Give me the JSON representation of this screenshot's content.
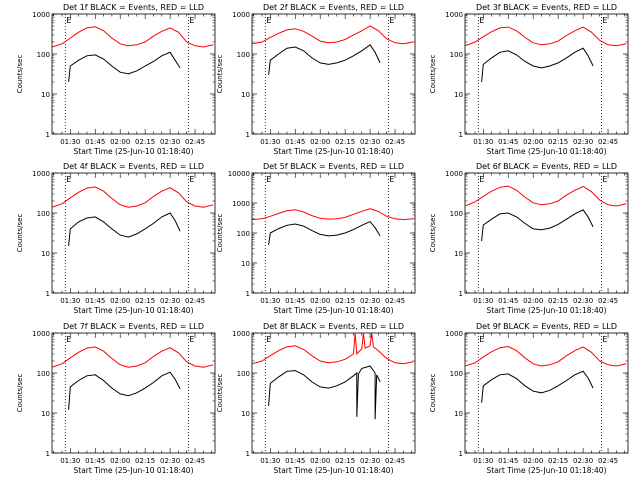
{
  "colors": {
    "background": "#ffffff",
    "axes": "#000000",
    "events": "#000000",
    "lld": "#ff0000"
  },
  "chart_data": [
    {
      "type": "line",
      "title": "Det 1f BLACK = Events, RED = LLD",
      "xlabel": "Start Time (25-Jun-10 01:18:40)",
      "ylabel": "Counts/sec",
      "y_scale": "log",
      "ylim": [
        1,
        1000
      ],
      "yticks": [
        "1",
        "10",
        "100",
        "1000"
      ],
      "xticks": [
        "01:30",
        "01:45",
        "02:00",
        "02:15",
        "02:30",
        "02:45"
      ],
      "markers": [
        "E",
        "E"
      ],
      "series": [
        {
          "name": "LLD",
          "x": [
            "01:19",
            "01:25",
            "01:30",
            "01:35",
            "01:40",
            "01:45",
            "01:50",
            "01:55",
            "02:00",
            "02:05",
            "02:10",
            "02:15",
            "02:20",
            "02:25",
            "02:30",
            "02:35",
            "02:40",
            "02:45",
            "02:50",
            "02:56"
          ],
          "values": [
            150,
            180,
            250,
            350,
            450,
            480,
            380,
            250,
            180,
            160,
            170,
            200,
            280,
            370,
            450,
            350,
            200,
            160,
            150,
            170
          ]
        },
        {
          "name": "Events",
          "x": [
            "01:29",
            "01:30",
            "01:35",
            "01:40",
            "01:45",
            "01:50",
            "01:55",
            "02:00",
            "02:05",
            "02:10",
            "02:15",
            "02:20",
            "02:25",
            "02:30",
            "02:33",
            "02:36"
          ],
          "values": [
            20,
            50,
            70,
            90,
            95,
            75,
            50,
            35,
            32,
            38,
            50,
            65,
            90,
            110,
            70,
            45
          ]
        }
      ]
    },
    {
      "type": "line",
      "title": "Det 2f BLACK = Events, RED = LLD",
      "xlabel": "Start Time (25-Jun-10 01:18:40)",
      "ylabel": "Counts/sec",
      "y_scale": "log",
      "ylim": [
        1,
        1000
      ],
      "yticks": [
        "1",
        "10",
        "100",
        "1000"
      ],
      "xticks": [
        "01:30",
        "01:45",
        "02:00",
        "02:15",
        "02:30",
        "02:45"
      ],
      "markers": [
        "E",
        "E"
      ],
      "series": [
        {
          "name": "LLD",
          "x": [
            "01:19",
            "01:25",
            "01:30",
            "01:35",
            "01:40",
            "01:45",
            "01:50",
            "01:55",
            "02:00",
            "02:05",
            "02:10",
            "02:15",
            "02:20",
            "02:25",
            "02:30",
            "02:35",
            "02:40",
            "02:45",
            "02:50",
            "02:56"
          ],
          "values": [
            180,
            200,
            260,
            330,
            400,
            430,
            370,
            280,
            210,
            190,
            200,
            230,
            300,
            380,
            500,
            380,
            240,
            190,
            180,
            200
          ]
        },
        {
          "name": "Events",
          "x": [
            "01:29",
            "01:30",
            "01:35",
            "01:40",
            "01:45",
            "01:50",
            "01:55",
            "02:00",
            "02:05",
            "02:10",
            "02:15",
            "02:20",
            "02:25",
            "02:30",
            "02:33",
            "02:36"
          ],
          "values": [
            30,
            70,
            100,
            140,
            150,
            120,
            80,
            60,
            55,
            60,
            70,
            90,
            120,
            170,
            110,
            60
          ]
        }
      ]
    },
    {
      "type": "line",
      "title": "Det 3f BLACK = Events, RED = LLD",
      "xlabel": "Start Time (25-Jun-10 01:18:40)",
      "ylabel": "Counts/sec",
      "y_scale": "log",
      "ylim": [
        1,
        1000
      ],
      "yticks": [
        "1",
        "10",
        "100",
        "1000"
      ],
      "xticks": [
        "01:30",
        "01:45",
        "02:00",
        "02:15",
        "02:30",
        "02:45"
      ],
      "markers": [
        "E",
        "E"
      ],
      "series": [
        {
          "name": "LLD",
          "x": [
            "01:19",
            "01:25",
            "01:30",
            "01:35",
            "01:40",
            "01:45",
            "01:50",
            "01:55",
            "02:00",
            "02:05",
            "02:10",
            "02:15",
            "02:20",
            "02:25",
            "02:30",
            "02:35",
            "02:40",
            "02:45",
            "02:50",
            "02:56"
          ],
          "values": [
            160,
            200,
            270,
            360,
            450,
            470,
            380,
            260,
            190,
            170,
            180,
            210,
            290,
            380,
            470,
            350,
            220,
            170,
            160,
            180
          ]
        },
        {
          "name": "Events",
          "x": [
            "01:29",
            "01:30",
            "01:35",
            "01:40",
            "01:45",
            "01:50",
            "01:55",
            "02:00",
            "02:05",
            "02:10",
            "02:15",
            "02:20",
            "02:25",
            "02:30",
            "02:33",
            "02:36"
          ],
          "values": [
            20,
            55,
            80,
            110,
            120,
            95,
            65,
            50,
            45,
            50,
            60,
            80,
            110,
            140,
            90,
            50
          ]
        }
      ]
    },
    {
      "type": "line",
      "title": "Det 4f BLACK = Events, RED = LLD",
      "xlabel": "Start Time (25-Jun-10 01:18:40)",
      "ylabel": "Counts/sec",
      "y_scale": "log",
      "ylim": [
        1,
        1000
      ],
      "yticks": [
        "1",
        "10",
        "100",
        "1000"
      ],
      "xticks": [
        "01:30",
        "01:45",
        "02:00",
        "02:15",
        "02:30",
        "02:45"
      ],
      "markers": [
        "E",
        "E"
      ],
      "series": [
        {
          "name": "LLD",
          "x": [
            "01:19",
            "01:25",
            "01:30",
            "01:35",
            "01:40",
            "01:45",
            "01:50",
            "01:55",
            "02:00",
            "02:05",
            "02:10",
            "02:15",
            "02:20",
            "02:25",
            "02:30",
            "02:35",
            "02:40",
            "02:45",
            "02:50",
            "02:56"
          ],
          "values": [
            140,
            170,
            240,
            330,
            420,
            450,
            350,
            230,
            160,
            140,
            150,
            180,
            260,
            350,
            430,
            320,
            190,
            150,
            140,
            160
          ]
        },
        {
          "name": "Events",
          "x": [
            "01:29",
            "01:30",
            "01:35",
            "01:40",
            "01:45",
            "01:50",
            "01:55",
            "02:00",
            "02:05",
            "02:10",
            "02:15",
            "02:20",
            "02:25",
            "02:30",
            "02:33",
            "02:36"
          ],
          "values": [
            15,
            40,
            60,
            75,
            80,
            60,
            40,
            28,
            25,
            30,
            40,
            55,
            80,
            100,
            65,
            35
          ]
        }
      ]
    },
    {
      "type": "line",
      "title": "Det 5f BLACK = Events, RED = LLD",
      "xlabel": "Start Time (25-Jun-10 01:18:40)",
      "ylabel": "Counts/sec",
      "y_scale": "log",
      "ylim": [
        1,
        10000
      ],
      "yticks": [
        "1",
        "10",
        "100",
        "1000",
        "10000"
      ],
      "xticks": [
        "01:30",
        "01:45",
        "02:00",
        "02:15",
        "02:30",
        "02:45"
      ],
      "markers": [
        "E",
        "E"
      ],
      "series": [
        {
          "name": "LLD",
          "x": [
            "01:19",
            "01:25",
            "01:30",
            "01:35",
            "01:40",
            "01:45",
            "01:50",
            "01:55",
            "02:00",
            "02:05",
            "02:10",
            "02:15",
            "02:20",
            "02:25",
            "02:30",
            "02:35",
            "02:40",
            "02:45",
            "02:50",
            "02:56"
          ],
          "values": [
            280,
            300,
            360,
            450,
            550,
            600,
            500,
            380,
            310,
            290,
            300,
            330,
            420,
            530,
            650,
            520,
            360,
            300,
            280,
            300
          ]
        },
        {
          "name": "Events",
          "x": [
            "01:29",
            "01:30",
            "01:35",
            "01:40",
            "01:45",
            "01:50",
            "01:55",
            "02:00",
            "02:05",
            "02:10",
            "02:15",
            "02:20",
            "02:25",
            "02:30",
            "02:33",
            "02:36"
          ],
          "values": [
            40,
            100,
            140,
            180,
            200,
            170,
            120,
            90,
            80,
            85,
            100,
            130,
            180,
            240,
            150,
            80
          ]
        }
      ]
    },
    {
      "type": "line",
      "title": "Det 6f BLACK = Events, RED = LLD",
      "xlabel": "Start Time (25-Jun-10 01:18:40)",
      "ylabel": "Counts/sec",
      "y_scale": "log",
      "ylim": [
        1,
        1000
      ],
      "yticks": [
        "1",
        "10",
        "100",
        "1000"
      ],
      "xticks": [
        "01:30",
        "01:45",
        "02:00",
        "02:15",
        "02:30",
        "02:45"
      ],
      "markers": [
        "E",
        "E"
      ],
      "series": [
        {
          "name": "LLD",
          "x": [
            "01:19",
            "01:25",
            "01:30",
            "01:35",
            "01:40",
            "01:45",
            "01:50",
            "01:55",
            "02:00",
            "02:05",
            "02:10",
            "02:15",
            "02:20",
            "02:25",
            "02:30",
            "02:35",
            "02:40",
            "02:45",
            "02:50",
            "02:56"
          ],
          "values": [
            150,
            190,
            260,
            350,
            440,
            470,
            370,
            250,
            180,
            160,
            170,
            200,
            280,
            370,
            460,
            340,
            210,
            160,
            150,
            170
          ]
        },
        {
          "name": "Events",
          "x": [
            "01:29",
            "01:30",
            "01:35",
            "01:40",
            "01:45",
            "01:50",
            "01:55",
            "02:00",
            "02:05",
            "02:10",
            "02:15",
            "02:20",
            "02:25",
            "02:30",
            "02:33",
            "02:36"
          ],
          "values": [
            20,
            50,
            70,
            95,
            100,
            80,
            55,
            40,
            38,
            42,
            52,
            70,
            95,
            120,
            80,
            45
          ]
        }
      ]
    },
    {
      "type": "line",
      "title": "Det 7f BLACK = Events, RED = LLD",
      "xlabel": "Start Time (25-Jun-10 01:18:40)",
      "ylabel": "Counts/sec",
      "y_scale": "log",
      "ylim": [
        1,
        1000
      ],
      "yticks": [
        "1",
        "10",
        "100",
        "1000"
      ],
      "xticks": [
        "01:30",
        "01:45",
        "02:00",
        "02:15",
        "02:30",
        "02:45"
      ],
      "markers": [
        "E",
        "E"
      ],
      "series": [
        {
          "name": "LLD",
          "x": [
            "01:19",
            "01:25",
            "01:30",
            "01:35",
            "01:40",
            "01:45",
            "01:50",
            "01:55",
            "02:00",
            "02:05",
            "02:10",
            "02:15",
            "02:20",
            "02:25",
            "02:30",
            "02:35",
            "02:40",
            "02:45",
            "02:50",
            "02:56"
          ],
          "values": [
            140,
            170,
            240,
            330,
            420,
            450,
            350,
            230,
            160,
            140,
            150,
            180,
            260,
            350,
            430,
            320,
            190,
            150,
            140,
            160
          ]
        },
        {
          "name": "Events",
          "x": [
            "01:29",
            "01:30",
            "01:35",
            "01:40",
            "01:45",
            "01:50",
            "01:55",
            "02:00",
            "02:05",
            "02:10",
            "02:15",
            "02:20",
            "02:25",
            "02:30",
            "02:33",
            "02:36"
          ],
          "values": [
            12,
            45,
            65,
            85,
            90,
            65,
            42,
            30,
            27,
            32,
            42,
            58,
            85,
            105,
            70,
            40
          ]
        }
      ]
    },
    {
      "type": "line",
      "title": "Det 8f BLACK = Events, RED = LLD",
      "xlabel": "Start Time (25-Jun-10 01:18:40)",
      "ylabel": "Counts/sec",
      "y_scale": "log",
      "ylim": [
        1,
        1000
      ],
      "yticks": [
        "1",
        "10",
        "100",
        "1000"
      ],
      "xticks": [
        "01:30",
        "01:45",
        "02:00",
        "02:15",
        "02:30",
        "02:45"
      ],
      "markers": [
        "E",
        "E"
      ],
      "series": [
        {
          "name": "LLD",
          "x": [
            "01:19",
            "01:25",
            "01:30",
            "01:35",
            "01:40",
            "01:45",
            "01:50",
            "01:55",
            "02:00",
            "02:05",
            "02:10",
            "02:15",
            "02:20",
            "02:21",
            "02:21",
            "02:22",
            "02:25",
            "02:26",
            "02:26",
            "02:27",
            "02:30",
            "02:31",
            "02:31",
            "02:32",
            "02:35",
            "02:40",
            "02:45",
            "02:50",
            "02:56"
          ],
          "values": [
            170,
            200,
            270,
            360,
            450,
            480,
            390,
            270,
            200,
            180,
            190,
            220,
            300,
            1000,
            1000,
            300,
            400,
            1000,
            1000,
            420,
            480,
            1000,
            1000,
            450,
            360,
            230,
            180,
            170,
            190
          ]
        },
        {
          "name": "Events",
          "x": [
            "01:29",
            "01:30",
            "01:35",
            "01:40",
            "01:45",
            "01:50",
            "01:55",
            "02:00",
            "02:05",
            "02:10",
            "02:15",
            "02:20",
            "02:22",
            "02:22",
            "02:23",
            "02:25",
            "02:30",
            "02:33",
            "02:33",
            "02:34",
            "02:36"
          ],
          "values": [
            15,
            55,
            80,
            110,
            115,
            90,
            60,
            45,
            42,
            48,
            60,
            85,
            100,
            8,
            95,
            130,
            150,
            100,
            7,
            90,
            60
          ]
        }
      ]
    },
    {
      "type": "line",
      "title": "Det 9f BLACK = Events, RED = LLD",
      "xlabel": "Start Time (25-Jun-10 01:18:40)",
      "ylabel": "Counts/sec",
      "y_scale": "log",
      "ylim": [
        1,
        1000
      ],
      "yticks": [
        "1",
        "10",
        "100",
        "1000"
      ],
      "xticks": [
        "01:30",
        "01:45",
        "02:00",
        "02:15",
        "02:30",
        "02:45"
      ],
      "markers": [
        "E",
        "E"
      ],
      "series": [
        {
          "name": "LLD",
          "x": [
            "01:19",
            "01:25",
            "01:30",
            "01:35",
            "01:40",
            "01:45",
            "01:50",
            "01:55",
            "02:00",
            "02:05",
            "02:10",
            "02:15",
            "02:20",
            "02:25",
            "02:30",
            "02:35",
            "02:40",
            "02:45",
            "02:50",
            "02:56"
          ],
          "values": [
            150,
            180,
            250,
            340,
            430,
            460,
            360,
            240,
            170,
            150,
            160,
            190,
            270,
            360,
            450,
            330,
            200,
            160,
            150,
            170
          ]
        },
        {
          "name": "Events",
          "x": [
            "01:29",
            "01:30",
            "01:35",
            "01:40",
            "01:45",
            "01:50",
            "01:55",
            "02:00",
            "02:05",
            "02:10",
            "02:15",
            "02:20",
            "02:25",
            "02:30",
            "02:33",
            "02:36"
          ],
          "values": [
            18,
            48,
            68,
            90,
            95,
            72,
            48,
            35,
            32,
            37,
            48,
            65,
            90,
            110,
            75,
            42
          ]
        }
      ]
    }
  ]
}
